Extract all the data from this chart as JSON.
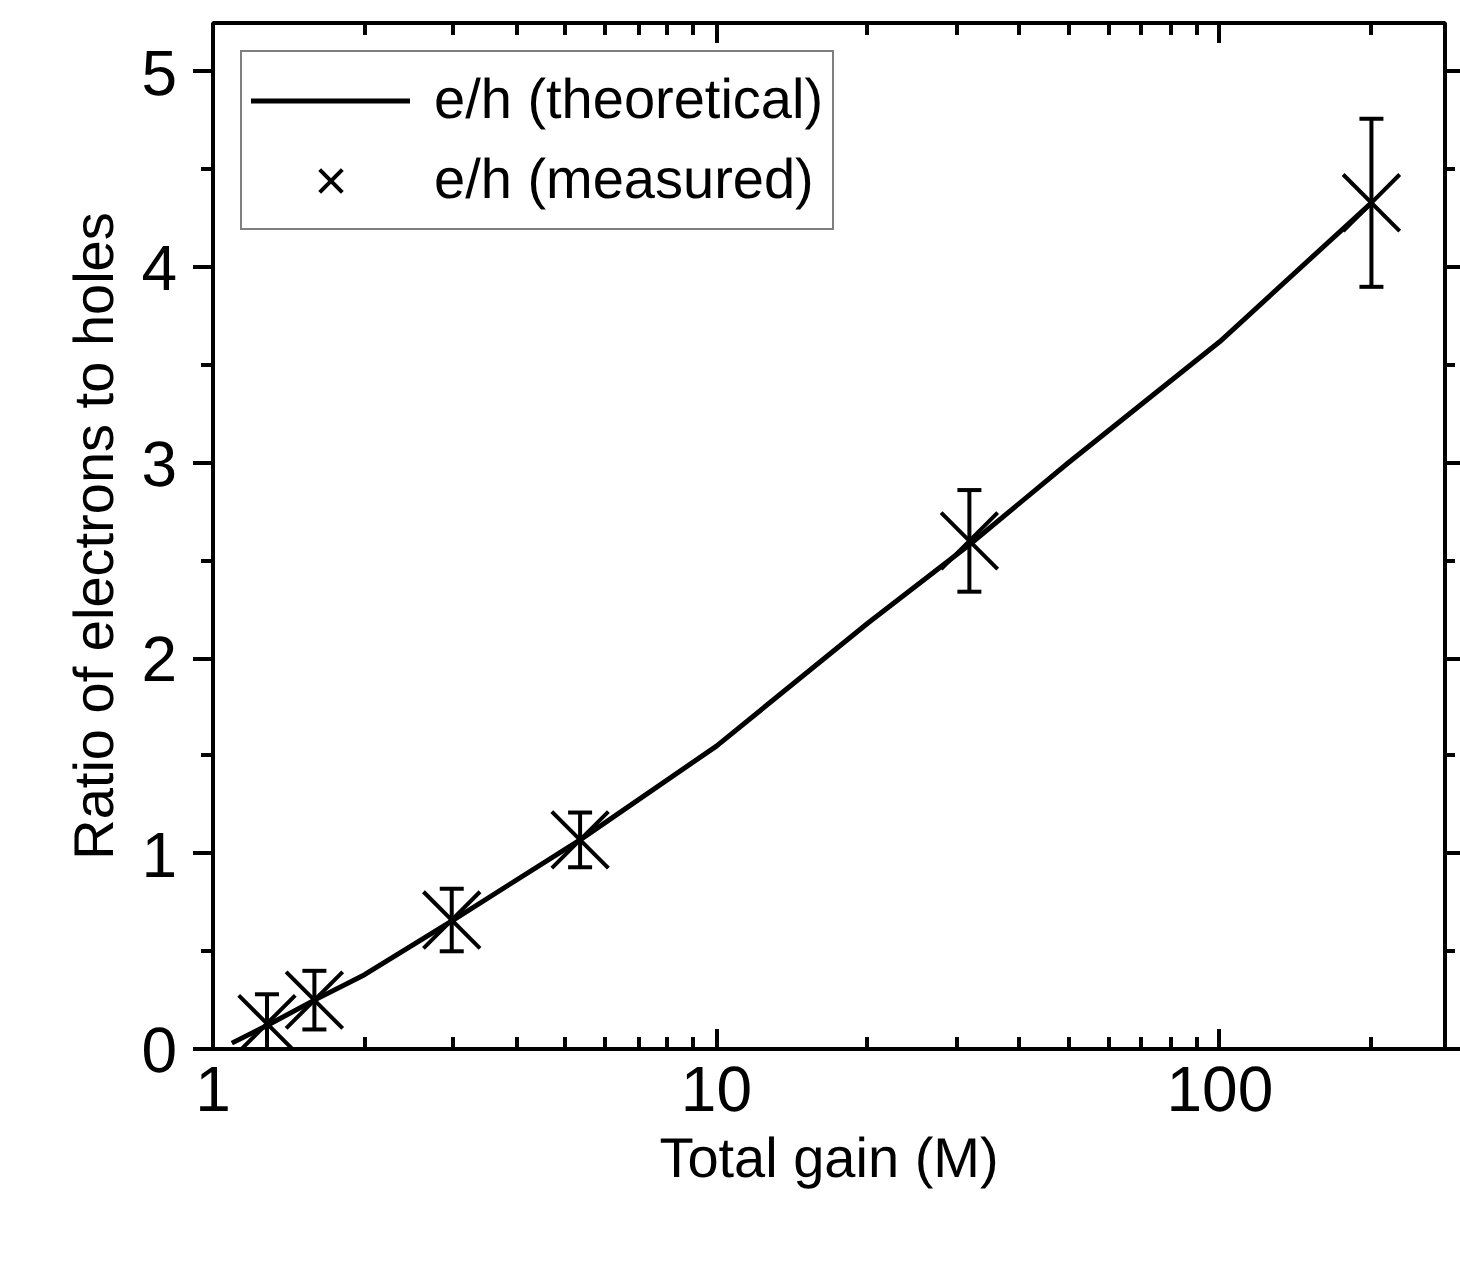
{
  "chart_data": {
    "type": "scatter",
    "xlabel": "Total gain (M)",
    "ylabel": "Ratio of electrons to holes",
    "log": "x",
    "xlim": [
      1,
      280
    ],
    "xticks": [
      1,
      10,
      100
    ],
    "ylim": [
      0,
      5.25
    ],
    "yticks": [
      0,
      1,
      2,
      3,
      4,
      5
    ],
    "grid": false,
    "legend": "top left",
    "series": [
      {
        "name": "e/h (theoretical)",
        "type": "line",
        "color": "#000000",
        "line_style": "solid",
        "x": [
          1.09,
          1.28,
          1.59,
          2,
          3,
          5.36,
          10,
          20,
          31.8,
          50,
          100,
          200
        ],
        "values": [
          0.03,
          0.12,
          0.25,
          0.38,
          0.66,
          1.07,
          1.55,
          2.18,
          2.58,
          3.0,
          3.62,
          4.33
        ]
      },
      {
        "name": "e/h (measured)",
        "marker": "cross",
        "color": "#000000",
        "x": [
          1.28,
          1.59,
          2.98,
          5.36,
          31.8,
          200
        ],
        "values": [
          0.13,
          0.25,
          0.66,
          1.07,
          2.6,
          4.33
        ],
        "errors": [
          0.15,
          0.15,
          0.16,
          0.14,
          0.26,
          0.43
        ]
      }
    ]
  }
}
